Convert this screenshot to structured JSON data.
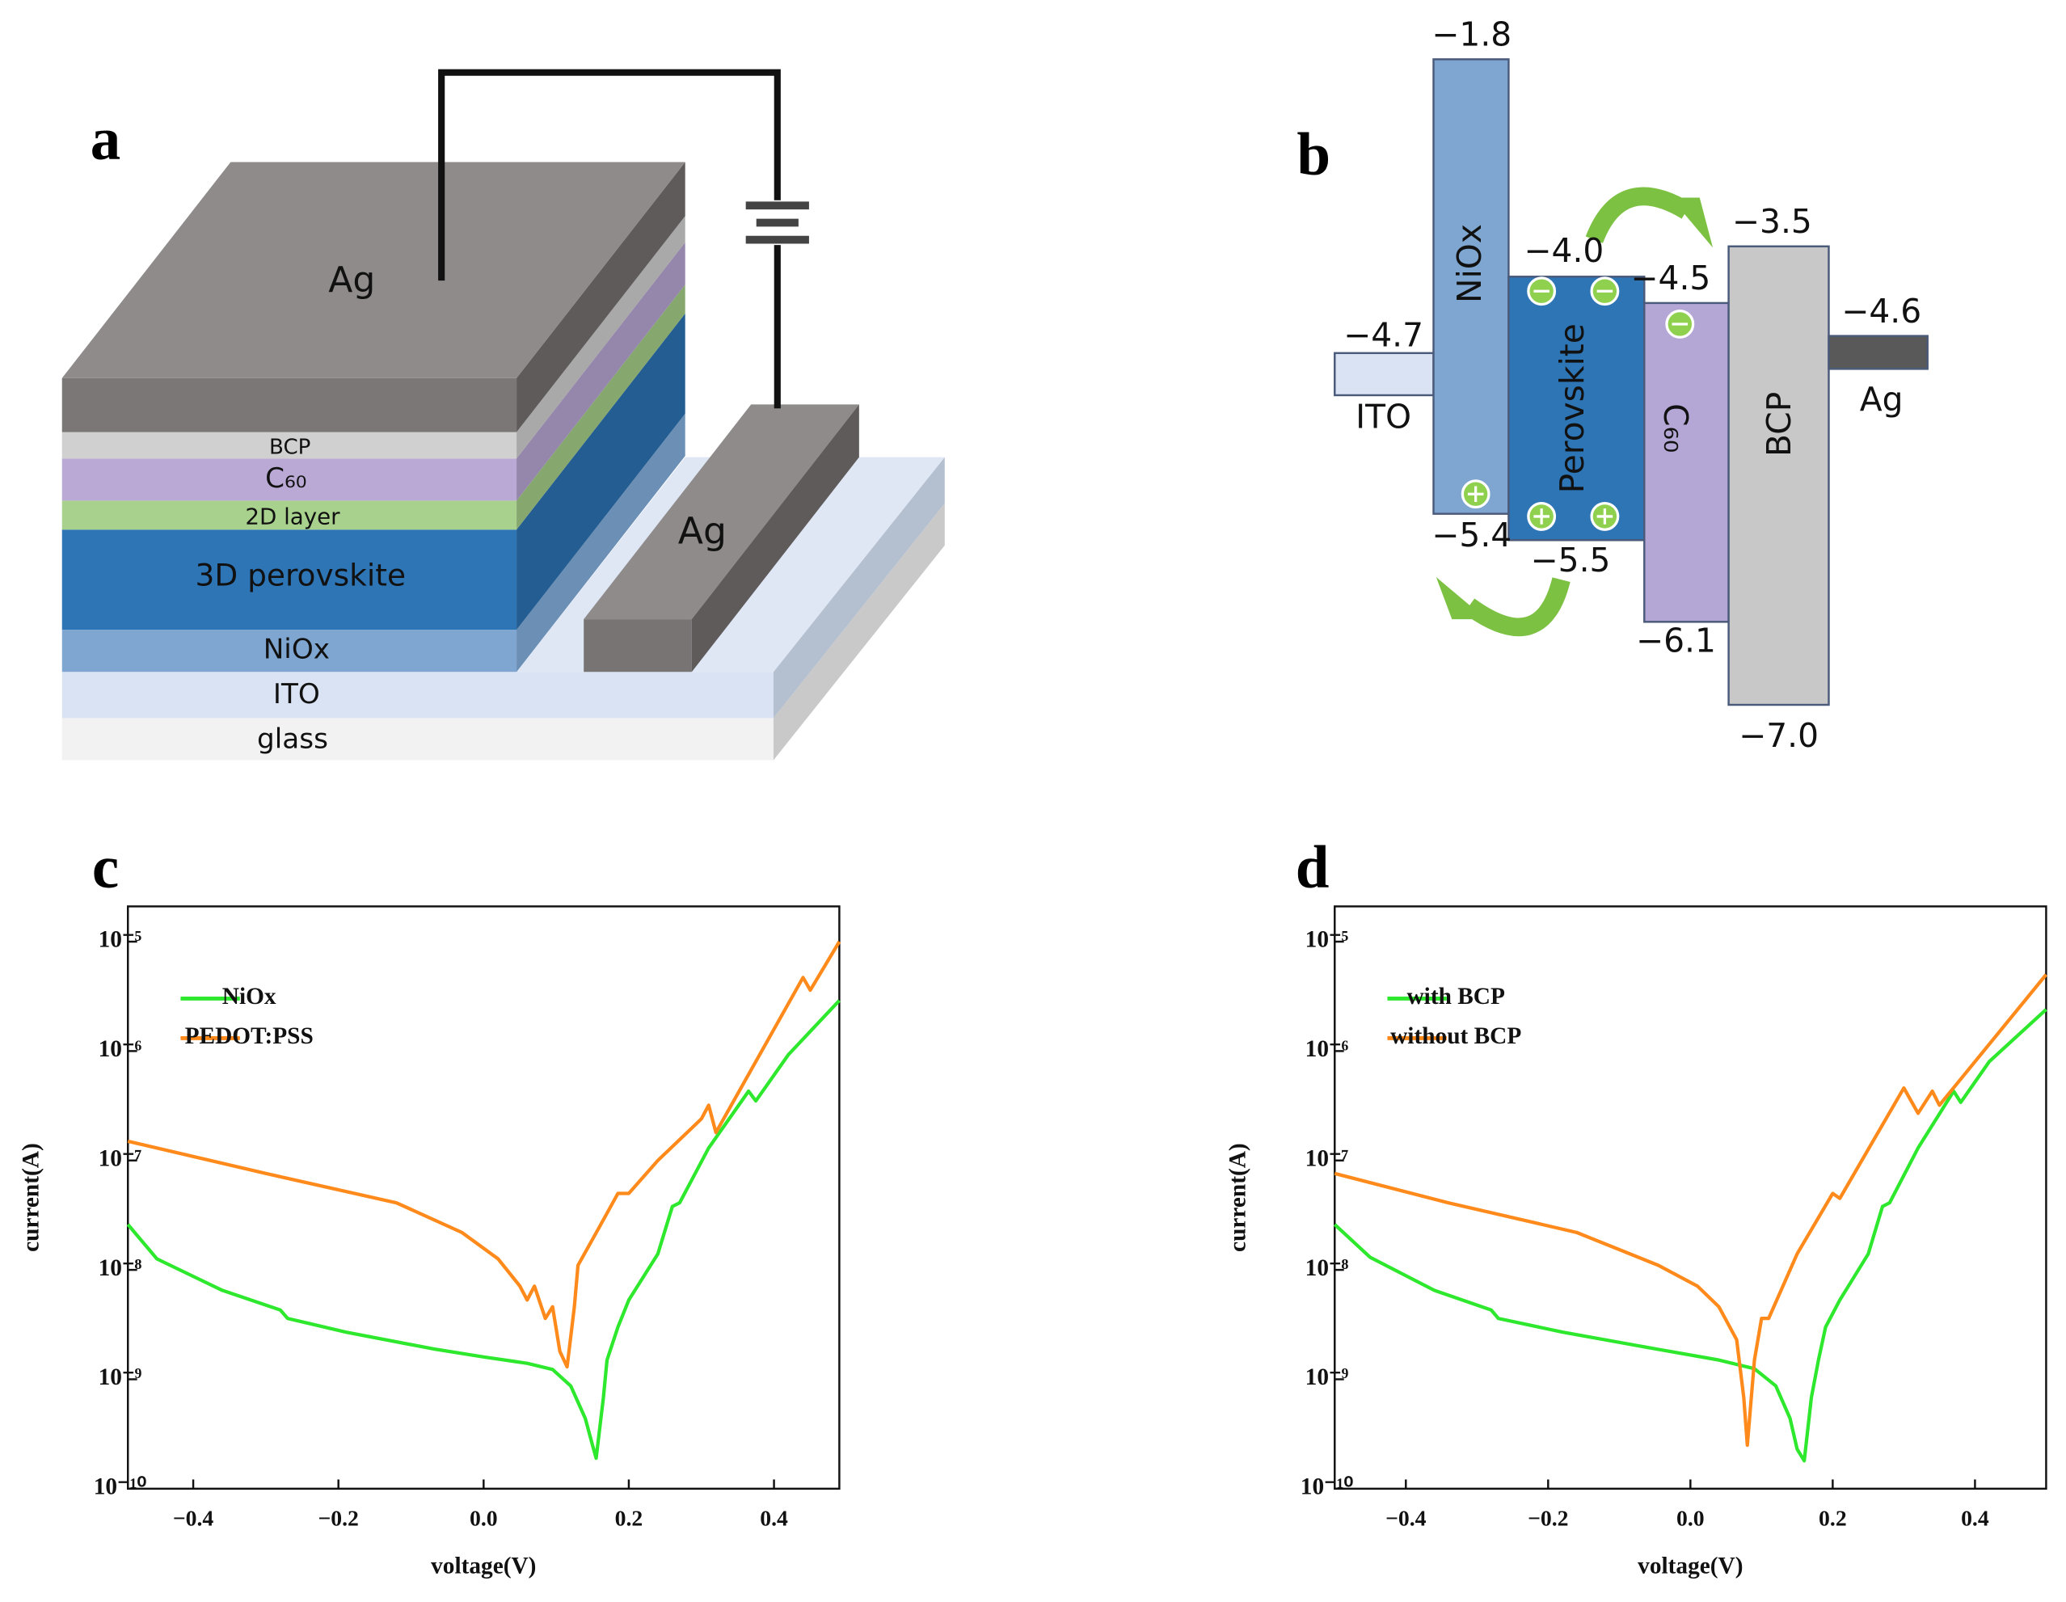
{
  "device": {
    "label": "a",
    "ag_top": "Ag",
    "bcp": "BCP",
    "c60": "C₆₀",
    "layer_2d": "2D layer",
    "perovskite": "3D perovskite",
    "niox": "NiOx",
    "ito": "ITO",
    "glass": "glass",
    "electrode": "Ag"
  },
  "energy": {
    "label": "b",
    "ito": {
      "name": "ITO",
      "top": "−4.7"
    },
    "niox": {
      "name": "NiOx",
      "top": "−1.8",
      "bottom": "−5.4"
    },
    "perovskite": {
      "name": "Perovskite",
      "top": "−4.0",
      "bottom": "−5.5"
    },
    "c60": {
      "name": "C₆₀",
      "top": "−4.5",
      "bottom": "−6.1"
    },
    "bcp": {
      "name": "BCP",
      "top": "−3.5",
      "bottom": "−7.0"
    },
    "ag": {
      "name": "Ag",
      "top": "−4.6"
    }
  },
  "chart_data": [
    {
      "type": "line",
      "title": "c",
      "x_label": "voltage(V)",
      "y_label": "current(A)",
      "log_y": true,
      "legend": "upper left",
      "grid": false,
      "xlim": [
        -0.49,
        0.49
      ],
      "xticks": [
        {
          "value": -0.4,
          "label": "−0.4"
        },
        {
          "value": -0.2,
          "label": "−0.2"
        },
        {
          "value": 0,
          "label": "0.0"
        },
        0.2,
        0.4
      ],
      "ylim": [
        1e-10,
        2.1e-05
      ],
      "yticks": [
        {
          "value": 1e-10,
          "label": "10⁻¹⁰"
        },
        {
          "value": 1e-09,
          "label": "10⁻⁹"
        },
        {
          "value": 1e-08,
          "label": "10⁻⁸"
        },
        {
          "value": 1e-07,
          "label": "10⁻⁷"
        },
        {
          "value": 1e-06,
          "label": "10⁻⁶"
        },
        {
          "value": 1e-05,
          "label": "10⁻⁵"
        }
      ],
      "series": [
        {
          "name": "NiOx",
          "color": "#2ee82e",
          "x": [
            -0.49,
            -0.45,
            -0.36,
            -0.28,
            -0.27,
            -0.19,
            -0.07,
            0.0,
            0.06,
            0.095,
            0.12,
            0.14,
            0.15,
            0.155,
            0.165,
            0.17,
            0.185,
            0.2,
            0.24,
            0.26,
            0.27,
            0.31,
            0.365,
            0.375,
            0.42,
            0.49
          ],
          "values": [
            2.6e-08,
            1.26e-08,
            6.5e-09,
            4.3e-09,
            3.6e-09,
            2.7e-09,
            1.9e-09,
            1.6e-09,
            1.4e-09,
            1.23e-09,
            8.7e-10,
            4.4e-10,
            2.5e-10,
            1.9e-10,
            6.8e-10,
            1.5e-09,
            3e-09,
            5.3e-09,
            1.4e-08,
            3.8e-08,
            4.1e-08,
            1.3e-07,
            4.3e-07,
            3.5e-07,
            9.3e-07,
            2.9e-06
          ]
        },
        {
          "name": "PEDOT:PSS",
          "color": "#ff8a1c",
          "x": [
            -0.49,
            -0.3,
            -0.12,
            -0.03,
            0.02,
            0.05,
            0.06,
            0.07,
            0.085,
            0.095,
            0.105,
            0.115,
            0.125,
            0.13,
            0.16,
            0.185,
            0.2,
            0.24,
            0.3,
            0.31,
            0.32,
            0.44,
            0.45,
            0.49
          ],
          "values": [
            1.5e-07,
            7.6e-08,
            4.1e-08,
            2.2e-08,
            1.26e-08,
            7.1e-09,
            5.3e-09,
            7.1e-09,
            3.6e-09,
            4.6e-09,
            1.8e-09,
            1.3e-09,
            4.6e-09,
            1.1e-08,
            2.5e-08,
            5e-08,
            5e-08,
            1e-07,
            2.4e-07,
            3.2e-07,
            1.8e-07,
            4.7e-06,
            3.6e-06,
            1e-05
          ]
        }
      ]
    },
    {
      "type": "line",
      "title": "d",
      "x_label": "voltage(V)",
      "y_label": "current(A)",
      "log_y": true,
      "legend": "upper left",
      "grid": false,
      "xlim": [
        -0.5,
        0.5
      ],
      "xticks": [
        {
          "value": -0.4,
          "label": "−0.4"
        },
        {
          "value": -0.2,
          "label": "−0.2"
        },
        {
          "value": 0,
          "label": "0.0"
        },
        0.2,
        0.4
      ],
      "ylim": [
        1e-10,
        2.1e-05
      ],
      "yticks": [
        {
          "value": 1e-10,
          "label": "10⁻¹⁰"
        },
        {
          "value": 1e-09,
          "label": "10⁻⁹"
        },
        {
          "value": 1e-08,
          "label": "10⁻⁸"
        },
        {
          "value": 1e-07,
          "label": "10⁻⁷"
        },
        {
          "value": 1e-06,
          "label": "10⁻⁶"
        },
        {
          "value": 1e-05,
          "label": "10⁻⁵"
        }
      ],
      "series": [
        {
          "name": "with BCP",
          "color": "#2ee82e",
          "x": [
            -0.5,
            -0.45,
            -0.36,
            -0.28,
            -0.27,
            -0.18,
            -0.05,
            0.04,
            0.09,
            0.12,
            0.14,
            0.15,
            0.16,
            0.17,
            0.18,
            0.19,
            0.21,
            0.25,
            0.27,
            0.28,
            0.32,
            0.37,
            0.38,
            0.42,
            0.5
          ],
          "values": [
            2.6e-08,
            1.3e-08,
            6.5e-09,
            4.3e-09,
            3.6e-09,
            2.7e-09,
            1.9e-09,
            1.5e-09,
            1.25e-09,
            8.7e-10,
            4.4e-10,
            2.3e-10,
            1.8e-10,
            6.8e-10,
            1.5e-09,
            3e-09,
            5.3e-09,
            1.4e-08,
            3.8e-08,
            4.1e-08,
            1.3e-07,
            4.3e-07,
            3.4e-07,
            8e-07,
            2.4e-06
          ]
        },
        {
          "name": "without BCP",
          "color": "#ff8a1c",
          "x": [
            -0.5,
            -0.34,
            -0.16,
            -0.045,
            0.01,
            0.04,
            0.065,
            0.075,
            0.08,
            0.09,
            0.1,
            0.11,
            0.15,
            0.2,
            0.21,
            0.3,
            0.32,
            0.34,
            0.35,
            0.5
          ],
          "values": [
            7.6e-08,
            4.1e-08,
            2.2e-08,
            1.1e-08,
            7.1e-09,
            4.6e-09,
            2.3e-09,
            6.8e-10,
            2.5e-10,
            1.5e-09,
            3.6e-09,
            3.6e-09,
            1.4e-08,
            5e-08,
            4.5e-08,
            4.6e-07,
            2.7e-07,
            4.3e-07,
            3.2e-07,
            5e-06
          ]
        }
      ]
    }
  ]
}
